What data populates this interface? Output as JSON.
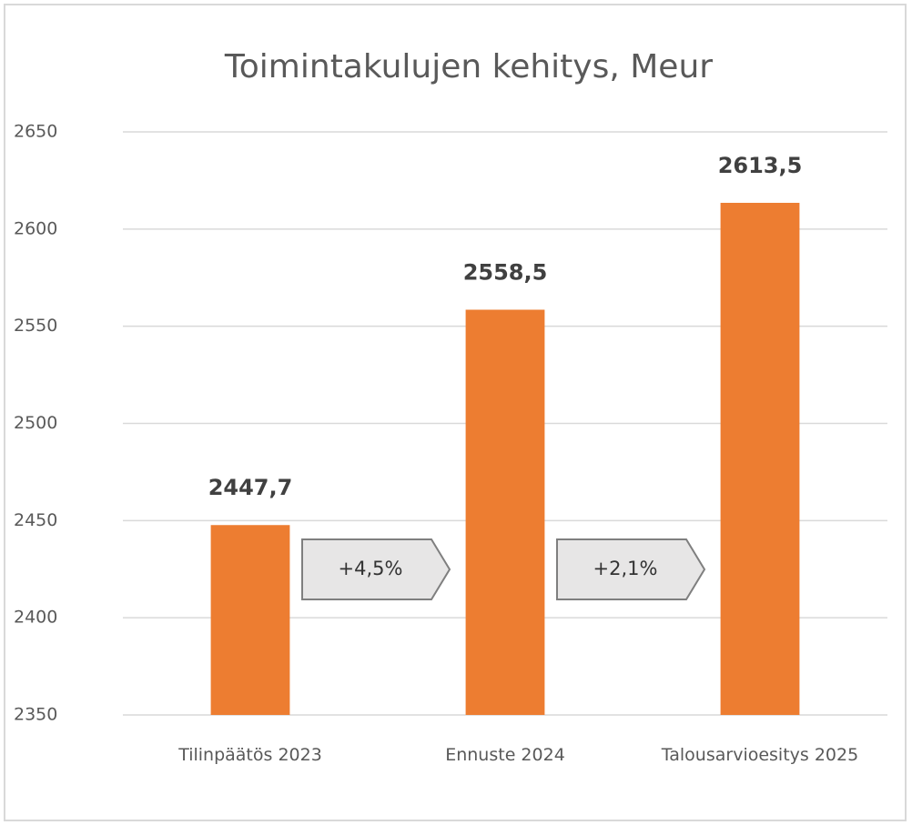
{
  "chart_data": {
    "type": "bar",
    "title": "Toimintakulujen kehitys, Meur",
    "categories": [
      "Tilinpäätös 2023",
      "Ennuste 2024",
      "Talousarvioesitys 2025"
    ],
    "values": [
      2447.7,
      2558.5,
      2613.5
    ],
    "value_labels": [
      "2447,7",
      "2558,5",
      "2613,5"
    ],
    "color": "#ed7d31",
    "ylim": [
      2350,
      2650
    ],
    "yticks": [
      2350,
      2400,
      2450,
      2500,
      2550,
      2600,
      2650
    ],
    "grid": true,
    "annotations": [
      "+4,5%",
      "+2,1%"
    ]
  }
}
